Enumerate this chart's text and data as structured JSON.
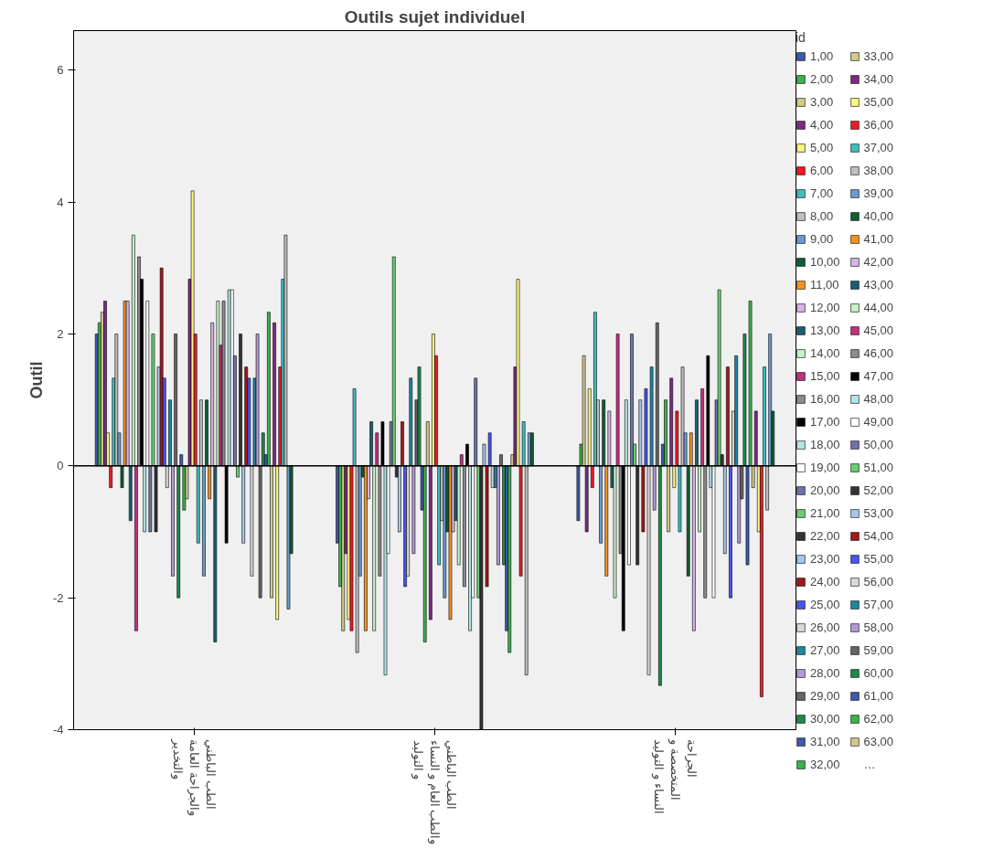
{
  "chart_data": {
    "type": "bar",
    "title": "Outils sujet individuel",
    "ylabel": "Outil",
    "legend_title": "id",
    "legend": "right",
    "grid": false,
    "categories": [
      "الطب الباطني\nوالجراحة العامة\nوالتخدير",
      "الطب الباطني\nوالطب العام و النساء\nو التوليد",
      "الجراحة\nالمتخصصة و\nالنساء و التوليد"
    ],
    "ylim": [
      -4,
      6.6
    ],
    "yticks": [
      -4,
      -2,
      0,
      2,
      4,
      6
    ],
    "ref_lines": [
      {
        "axis": "y",
        "value": 0,
        "label": null,
        "color": "#000000"
      }
    ],
    "annotations": [
      "…"
    ],
    "series": [
      {
        "name": "1,00",
        "color": "#3e58ac",
        "values": [
          2.0,
          -1.17,
          -0.83
        ]
      },
      {
        "name": "2,00",
        "color": "#3bb44a",
        "values": [
          2.17,
          -1.83,
          0.33
        ]
      },
      {
        "name": "3,00",
        "color": "#d2ca8c",
        "values": [
          2.33,
          -2.5,
          1.67
        ]
      },
      {
        "name": "4,00",
        "color": "#7d2a83",
        "values": [
          2.5,
          -1.33,
          -1.0
        ]
      },
      {
        "name": "5,00",
        "color": "#fbf583",
        "values": [
          0.5,
          -2.33,
          1.17
        ]
      },
      {
        "name": "6,00",
        "color": "#ed1c24",
        "values": [
          -0.33,
          -2.5,
          -0.33
        ]
      },
      {
        "name": "7,00",
        "color": "#40bfc1",
        "values": [
          1.33,
          1.17,
          2.33
        ]
      },
      {
        "name": "8,00",
        "color": "#c0c0c0",
        "values": [
          2.0,
          -2.83,
          1.0
        ]
      },
      {
        "name": "9,00",
        "color": "#6d9bd0",
        "values": [
          0.5,
          -1.67,
          -1.17
        ]
      },
      {
        "name": "10,00",
        "color": "#105e33",
        "values": [
          -0.33,
          -0.17,
          1.0
        ]
      },
      {
        "name": "11,00",
        "color": "#f7941d",
        "values": [
          2.5,
          -2.5,
          -1.67
        ]
      },
      {
        "name": "12,00",
        "color": "#d6b4e6",
        "values": [
          2.5,
          -0.5,
          0.83
        ]
      },
      {
        "name": "13,00",
        "color": "#1a5e73",
        "values": [
          -0.83,
          0.67,
          -0.33
        ]
      },
      {
        "name": "14,00",
        "color": "#c5f3c5",
        "values": [
          3.5,
          -2.5,
          -2.0
        ]
      },
      {
        "name": "15,00",
        "color": "#c3317e",
        "values": [
          -2.5,
          0.5,
          2.0
        ]
      },
      {
        "name": "16,00",
        "color": "#8c8c8c",
        "values": [
          3.17,
          -1.67,
          -1.33
        ]
      },
      {
        "name": "17,00",
        "color": "#000000",
        "values": [
          2.83,
          0.67,
          -2.5
        ]
      },
      {
        "name": "18,00",
        "color": "#b5e5e5",
        "values": [
          -1.0,
          -3.17,
          1.0
        ]
      },
      {
        "name": "19,00",
        "color": "#ffffff",
        "values": [
          2.5,
          -1.33,
          -1.5
        ]
      },
      {
        "name": "20,00",
        "color": "#6f74a8",
        "values": [
          -1.0,
          0.67,
          2.0
        ]
      },
      {
        "name": "21,00",
        "color": "#6acf73",
        "values": [
          2.0,
          3.17,
          0.33
        ]
      },
      {
        "name": "22,00",
        "color": "#333333",
        "values": [
          -1.0,
          -0.17,
          -1.5
        ]
      },
      {
        "name": "23,00",
        "color": "#a5c8ec",
        "values": [
          1.5,
          -1.0,
          1.0
        ]
      },
      {
        "name": "24,00",
        "color": "#a31818",
        "values": [
          3.0,
          0.67,
          -1.0
        ]
      },
      {
        "name": "25,00",
        "color": "#4a55f0",
        "values": [
          1.33,
          -1.83,
          1.17
        ]
      },
      {
        "name": "26,00",
        "color": "#d9d9d9",
        "values": [
          -0.33,
          -1.67,
          -3.17
        ]
      },
      {
        "name": "27,00",
        "color": "#1e88a0",
        "values": [
          1.0,
          1.33,
          1.5
        ]
      },
      {
        "name": "28,00",
        "color": "#b39ad6",
        "values": [
          -1.67,
          -1.33,
          -0.67
        ]
      },
      {
        "name": "29,00",
        "color": "#666666",
        "values": [
          2.0,
          1.0,
          2.17
        ]
      },
      {
        "name": "30,00",
        "color": "#1e8a4a",
        "values": [
          -2.0,
          1.5,
          -3.33
        ]
      },
      {
        "name": "31,00",
        "color": "#3e58ac",
        "values": [
          0.17,
          -0.67,
          0.33
        ]
      },
      {
        "name": "32,00",
        "color": "#3bb44a",
        "values": [
          -0.67,
          -2.67,
          1.0
        ]
      },
      {
        "name": "33,00",
        "color": "#d2ca8c",
        "values": [
          -0.5,
          0.67,
          -1.0
        ]
      },
      {
        "name": "34,00",
        "color": "#7d2a83",
        "values": [
          2.83,
          -2.33,
          1.33
        ]
      },
      {
        "name": "35,00",
        "color": "#fbf583",
        "values": [
          4.17,
          2.0,
          -0.33
        ]
      },
      {
        "name": "36,00",
        "color": "#ed1c24",
        "values": [
          2.0,
          1.67,
          0.83
        ]
      },
      {
        "name": "37,00",
        "color": "#40bfc1",
        "values": [
          -1.17,
          -1.5,
          -1.0
        ]
      },
      {
        "name": "38,00",
        "color": "#c0c0c0",
        "values": [
          1.0,
          -0.83,
          1.5
        ]
      },
      {
        "name": "39,00",
        "color": "#6d9bd0",
        "values": [
          -1.67,
          -2.0,
          0.5
        ]
      },
      {
        "name": "40,00",
        "color": "#105e33",
        "values": [
          1.0,
          -1.0,
          -1.67
        ]
      },
      {
        "name": "41,00",
        "color": "#f7941d",
        "values": [
          -0.5,
          -2.33,
          0.5
        ]
      },
      {
        "name": "42,00",
        "color": "#d6b4e6",
        "values": [
          2.17,
          -1.0,
          -2.5
        ]
      },
      {
        "name": "43,00",
        "color": "#1a5e73",
        "values": [
          -2.67,
          -0.83,
          1.0
        ]
      },
      {
        "name": "44,00",
        "color": "#c5f3c5",
        "values": [
          2.5,
          -1.5,
          -1.0
        ]
      },
      {
        "name": "45,00",
        "color": "#c3317e",
        "values": [
          1.83,
          0.17,
          1.17
        ]
      },
      {
        "name": "46,00",
        "color": "#8c8c8c",
        "values": [
          2.5,
          -1.83,
          -2.0
        ]
      },
      {
        "name": "47,00",
        "color": "#000000",
        "values": [
          -1.17,
          0.33,
          1.67
        ]
      },
      {
        "name": "48,00",
        "color": "#b5e5e5",
        "values": [
          2.67,
          -2.5,
          -0.33
        ]
      },
      {
        "name": "49,00",
        "color": "#ffffff",
        "values": [
          2.67,
          -2.0,
          -2.0
        ]
      },
      {
        "name": "50,00",
        "color": "#6f74a8",
        "values": [
          1.67,
          1.33,
          1.0
        ]
      },
      {
        "name": "51,00",
        "color": "#6acf73",
        "values": [
          -0.17,
          -2.0,
          2.67
        ]
      },
      {
        "name": "52,00",
        "color": "#333333",
        "values": [
          2.0,
          -4.0,
          0.17
        ]
      },
      {
        "name": "53,00",
        "color": "#a5c8ec",
        "values": [
          -1.17,
          0.33,
          -1.33
        ]
      },
      {
        "name": "54,00",
        "color": "#a31818",
        "values": [
          1.5,
          -1.83,
          1.5
        ]
      },
      {
        "name": "55,00",
        "color": "#4a55f0",
        "values": [
          1.33,
          0.5,
          -2.0
        ]
      },
      {
        "name": "56,00",
        "color": "#d9d9d9",
        "values": [
          -1.67,
          -0.33,
          0.83
        ]
      },
      {
        "name": "57,00",
        "color": "#1e88a0",
        "values": [
          1.33,
          -0.33,
          1.67
        ]
      },
      {
        "name": "58,00",
        "color": "#b39ad6",
        "values": [
          2.0,
          -1.5,
          -1.17
        ]
      },
      {
        "name": "59,00",
        "color": "#666666",
        "values": [
          -2.0,
          0.17,
          -0.5
        ]
      },
      {
        "name": "60,00",
        "color": "#1e8a4a",
        "values": [
          0.5,
          -1.5,
          2.0
        ]
      },
      {
        "name": "61,00",
        "color": "#3e58ac",
        "values": [
          0.17,
          -2.5,
          -1.5
        ]
      },
      {
        "name": "62,00",
        "color": "#3bb44a",
        "values": [
          2.33,
          -2.83,
          2.5
        ]
      },
      {
        "name": "63,00",
        "color": "#d2ca8c",
        "values": [
          -2.0,
          0.17,
          -0.33
        ]
      },
      {
        "color": "#7d2a83",
        "values": [
          2.17,
          1.5,
          0.83
        ]
      },
      {
        "color": "#fbf583",
        "values": [
          -2.33,
          2.83,
          -1.0
        ]
      },
      {
        "color": "#ed1c24",
        "values": [
          1.5,
          -1.67,
          -3.5
        ]
      },
      {
        "color": "#40bfc1",
        "values": [
          2.83,
          0.67,
          1.5
        ]
      },
      {
        "color": "#c0c0c0",
        "values": [
          3.5,
          -3.17,
          -0.67
        ]
      },
      {
        "color": "#6d9bd0",
        "values": [
          -2.17,
          0.5,
          2.0
        ]
      },
      {
        "color": "#105e33",
        "values": [
          -1.33,
          0.5,
          0.83
        ]
      }
    ]
  }
}
